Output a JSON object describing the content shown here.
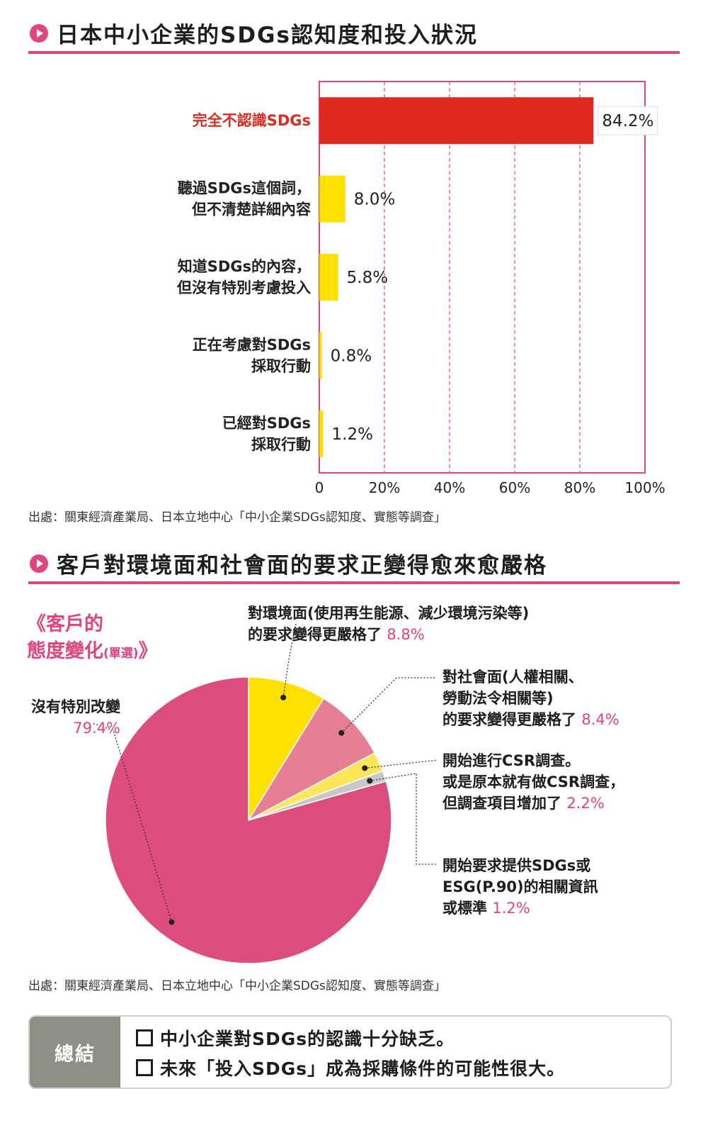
{
  "section1": {
    "title": "日本中小企業的SDGs認知度和投入狀況"
  },
  "section2": {
    "title": "客戶對環境面和社會面的要求正變得愈來愈嚴格"
  },
  "source_note": "出處：關東經濟產業局、日本立地中心「中小企業SDGs認知度、實態等調查」",
  "colors": {
    "accent": "#e0457e",
    "red": "#e02a1f",
    "yellow": "#ffe000",
    "pink_light": "#e58094",
    "yellow_light": "#fbe65a",
    "gray": "#c8c8c8"
  },
  "pie_heading": {
    "line1": "《客戶的",
    "line2": "態度變化",
    "small": "(單選)",
    "close": "》"
  },
  "chart_data": [
    {
      "type": "bar",
      "orientation": "horizontal",
      "categories": [
        "完全不認識SDGs",
        "聽過SDGs這個詞，\n但不清楚詳細內容",
        "知道SDGs的內容，\n但沒有特別考慮投入",
        "正在考慮對SDGs\n採取行動",
        "已經對SDGs\n採取行動"
      ],
      "values": [
        84.2,
        8.0,
        5.8,
        0.8,
        1.2
      ],
      "value_labels": [
        "84.2%",
        "8.0%",
        "5.8%",
        "0.8%",
        "1.2%"
      ],
      "colors": [
        "#e02a1f",
        "#ffe000",
        "#ffe000",
        "#ffe000",
        "#ffe000"
      ],
      "xlim": [
        0,
        100
      ],
      "xticks": [
        0,
        20,
        40,
        60,
        80,
        100
      ],
      "xtick_labels": [
        "0",
        "20%",
        "40%",
        "60%",
        "80%",
        "100%"
      ],
      "grid": "vertical dashed"
    },
    {
      "type": "pie",
      "slices": [
        {
          "label": "對環境面(使用再生能源、減少環境污染等)\n的要求變得更嚴格了",
          "value": 8.8,
          "value_label": "8.8%",
          "color": "#ffe000"
        },
        {
          "label": "對社會面(人權相關、\n勞動法令相關等)\n的要求變得更嚴格了",
          "value": 8.4,
          "value_label": "8.4%",
          "color": "#e58094"
        },
        {
          "label": "開始進行CSR調查。\n或是原本就有做CSR調查，\n但調查項目增加了",
          "value": 2.2,
          "value_label": "2.2%",
          "color": "#fbe65a"
        },
        {
          "label": "開始要求提供SDGs或\nESG(P.90)的相關資訊\n或標準",
          "value": 1.2,
          "value_label": "1.2%",
          "color": "#c8c8c8"
        },
        {
          "label": "沒有特別改變",
          "value": 79.4,
          "value_label": "79.4%",
          "color": "#dc4c7e"
        }
      ]
    }
  ],
  "summary": {
    "label": "總結",
    "items": [
      "中小企業對SDGs的認識十分缺乏。",
      "未來「投入SDGs」成為採購條件的可能性很大。"
    ]
  }
}
